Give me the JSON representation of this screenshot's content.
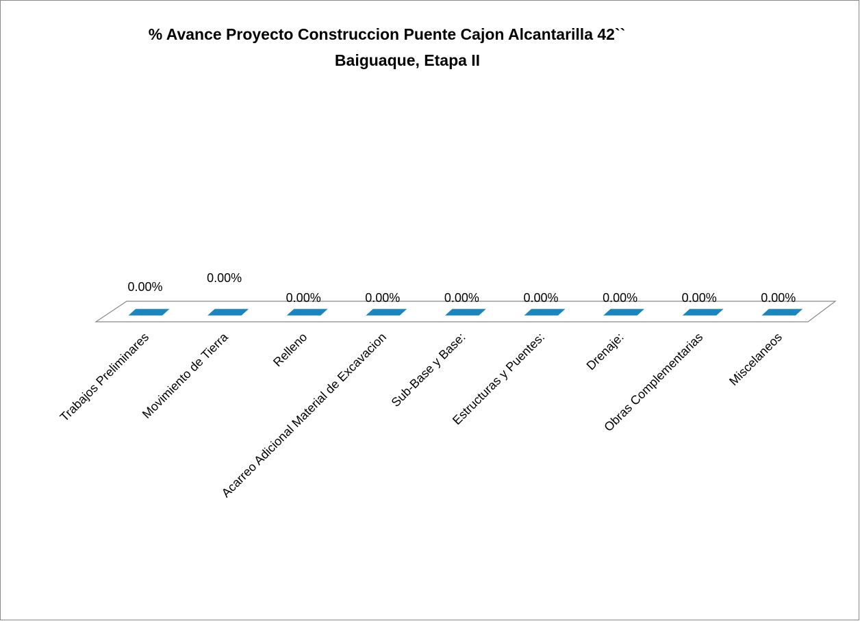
{
  "chart_data": {
    "type": "bar3d",
    "title": [
      "% Avance Proyecto Construccion Puente Cajon Alcantarilla 42``",
      "Baiguaque, Etapa II"
    ],
    "categories": [
      "Trabajos Preliminares",
      "Movimiento de Tierra",
      "Relleno",
      "Acarreo Adicional Material de Excavacion",
      "Sub-Base y Base:",
      "Estructuras y Puentes:",
      "Drenaje:",
      "Obras Complementarias",
      "Miscelaneos"
    ],
    "values": [
      0,
      0,
      0,
      0,
      0,
      0,
      0,
      0,
      0
    ],
    "value_labels": [
      "0.00%",
      "0.00%",
      "0.00%",
      "0.00%",
      "0.00%",
      "0.00%",
      "0.00%",
      "0.00%",
      "0.00%"
    ],
    "color": "#1a86c0"
  }
}
